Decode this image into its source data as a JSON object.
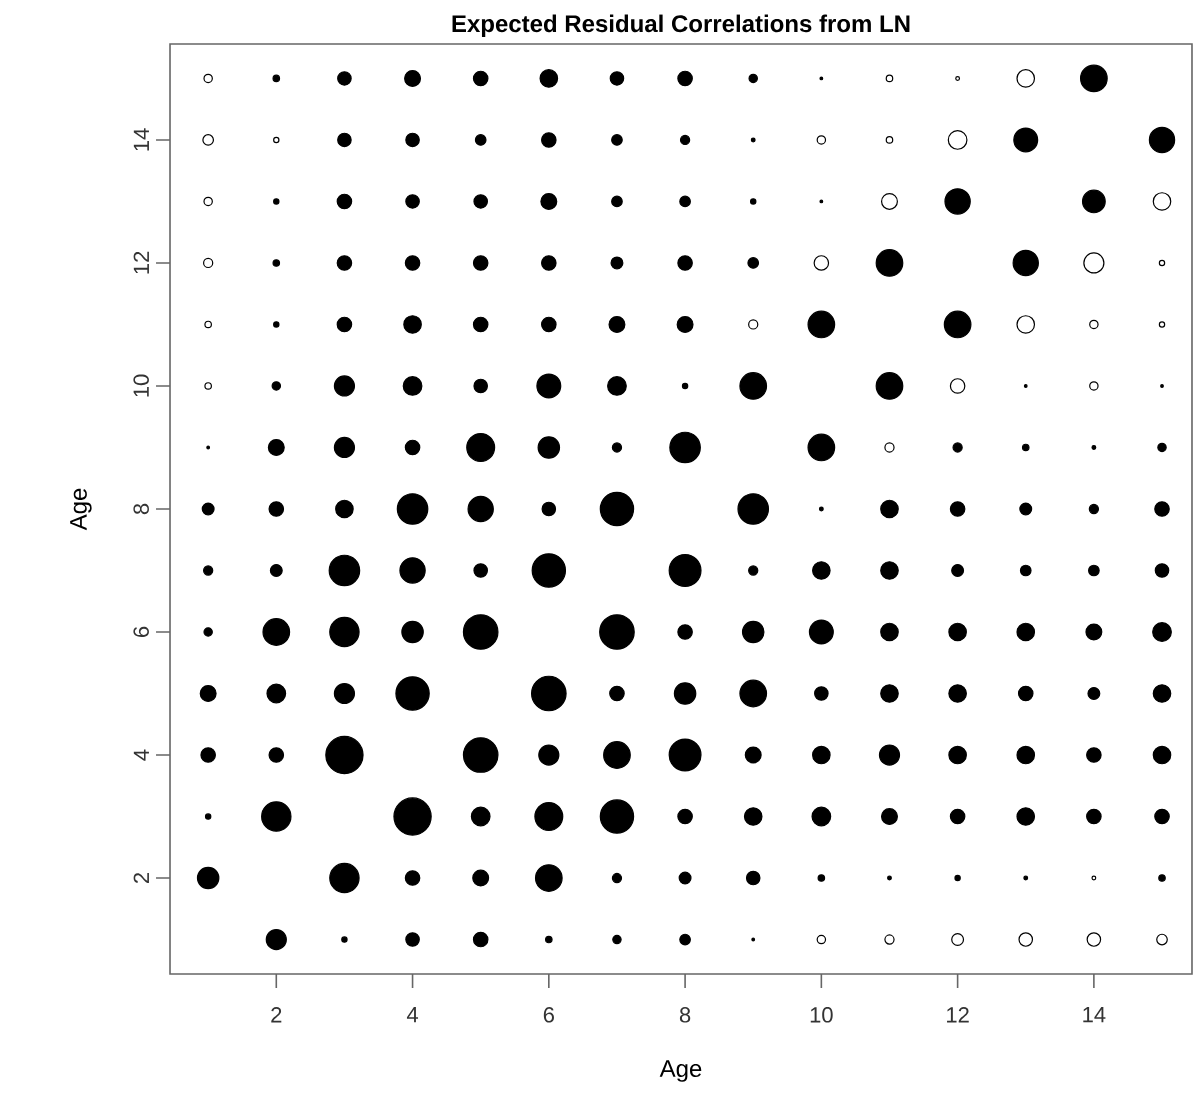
{
  "chart_data": {
    "type": "bubble",
    "title": "Expected Residual Correlations from LN",
    "xlabel": "Age",
    "ylabel": "Age",
    "xlim": [
      0.44,
      15.44
    ],
    "ylim": [
      0.44,
      15.56
    ],
    "xticks": [
      2,
      4,
      6,
      8,
      10,
      12,
      14
    ],
    "yticks": [
      2,
      4,
      6,
      8,
      10,
      12,
      14
    ],
    "series": [
      {
        "color": "#000000",
        "x": [
          2,
          3,
          4,
          5,
          6,
          7,
          8,
          9,
          10,
          14,
          3,
          4,
          5,
          6,
          7,
          8,
          9,
          13,
          15,
          2,
          3,
          4,
          5,
          6,
          7,
          8,
          9,
          10,
          12,
          14,
          2,
          3,
          4,
          5,
          6,
          7,
          8,
          9,
          11,
          13,
          2,
          3,
          4,
          5,
          6,
          7,
          8,
          10,
          12,
          2,
          3,
          4,
          5,
          6,
          7,
          8,
          9,
          11,
          13,
          15,
          1,
          2,
          3,
          4,
          5,
          6,
          7,
          8,
          10,
          12,
          13,
          14,
          15,
          1,
          2,
          3,
          4,
          5,
          6,
          7,
          9,
          10,
          11,
          12,
          13,
          14,
          15,
          1,
          2,
          3,
          4,
          5,
          6,
          8,
          9,
          10,
          11,
          12,
          13,
          14,
          15,
          1,
          2,
          3,
          4,
          5,
          7,
          8,
          9,
          10,
          11,
          12,
          13,
          14,
          15,
          1,
          2,
          3,
          4,
          6,
          7,
          8,
          9,
          10,
          11,
          12,
          13,
          14,
          15,
          1,
          2,
          3,
          5,
          6,
          7,
          8,
          9,
          10,
          11,
          12,
          13,
          14,
          15,
          1,
          2,
          4,
          5,
          6,
          7,
          8,
          9,
          10,
          11,
          12,
          13,
          14,
          15,
          1,
          3,
          4,
          5,
          6,
          7,
          8,
          9,
          10,
          11,
          12,
          13,
          15,
          2,
          3,
          4,
          5,
          6,
          7,
          8,
          9
        ],
        "values": [
          15,
          15,
          15,
          15,
          15,
          15,
          15,
          15,
          15,
          15,
          14,
          14,
          14,
          14,
          14,
          14,
          14,
          14,
          14,
          13,
          13,
          13,
          13,
          13,
          13,
          13,
          13,
          13,
          13,
          13,
          12,
          12,
          12,
          12,
          12,
          12,
          12,
          12,
          12,
          12,
          11,
          11,
          11,
          11,
          11,
          11,
          11,
          11,
          11,
          10,
          10,
          10,
          10,
          10,
          10,
          10,
          10,
          10,
          10,
          10,
          9,
          9,
          9,
          9,
          9,
          9,
          9,
          9,
          9,
          9,
          9,
          9,
          9,
          8,
          8,
          8,
          8,
          8,
          8,
          8,
          8,
          8,
          8,
          8,
          8,
          8,
          8,
          7,
          7,
          7,
          7,
          7,
          7,
          7,
          7,
          7,
          7,
          7,
          7,
          7,
          7,
          6,
          6,
          6,
          6,
          6,
          6,
          6,
          6,
          6,
          6,
          6,
          6,
          6,
          6,
          5,
          5,
          5,
          5,
          5,
          5,
          5,
          5,
          5,
          5,
          5,
          5,
          5,
          5,
          4,
          4,
          4,
          4,
          4,
          4,
          4,
          4,
          4,
          4,
          4,
          4,
          4,
          4,
          3,
          3,
          3,
          3,
          3,
          3,
          3,
          3,
          3,
          3,
          3,
          3,
          3,
          3,
          2,
          2,
          2,
          2,
          2,
          2,
          2,
          2,
          2,
          2,
          2,
          2,
          2,
          1,
          1,
          1,
          1,
          1,
          1,
          1,
          1
        ],
        "sizes": [
          0.03,
          0.13,
          0.18,
          0.15,
          0.22,
          0.13,
          0.15,
          0.05,
          0.005,
          0.51,
          0.13,
          0.13,
          0.08,
          0.15,
          0.08,
          0.06,
          0.01,
          0.41,
          0.46,
          0.02,
          0.15,
          0.13,
          0.13,
          0.18,
          0.08,
          0.08,
          0.02,
          0.005,
          0.46,
          0.37,
          0.03,
          0.15,
          0.15,
          0.15,
          0.15,
          0.1,
          0.15,
          0.08,
          0.51,
          0.46,
          0.02,
          0.15,
          0.22,
          0.15,
          0.15,
          0.18,
          0.18,
          0.51,
          0.51,
          0.05,
          0.29,
          0.25,
          0.13,
          0.41,
          0.25,
          0.02,
          0.51,
          0.51,
          0.005,
          0.005,
          0.005,
          0.18,
          0.29,
          0.15,
          0.56,
          0.33,
          0.06,
          0.67,
          0.51,
          0.06,
          0.03,
          0.01,
          0.05,
          0.1,
          0.15,
          0.22,
          0.67,
          0.46,
          0.13,
          0.8,
          0.67,
          0.01,
          0.22,
          0.15,
          0.1,
          0.06,
          0.15,
          0.06,
          0.1,
          0.67,
          0.46,
          0.13,
          0.8,
          0.73,
          0.06,
          0.22,
          0.22,
          0.1,
          0.08,
          0.08,
          0.13,
          0.05,
          0.51,
          0.62,
          0.33,
          0.86,
          0.86,
          0.15,
          0.33,
          0.41,
          0.22,
          0.22,
          0.22,
          0.18,
          0.25,
          0.18,
          0.25,
          0.29,
          0.8,
          0.86,
          0.15,
          0.33,
          0.51,
          0.13,
          0.22,
          0.22,
          0.15,
          0.1,
          0.22,
          0.15,
          0.15,
          1,
          0.86,
          0.29,
          0.51,
          0.73,
          0.18,
          0.22,
          0.29,
          0.22,
          0.22,
          0.15,
          0.22,
          0.02,
          0.62,
          1,
          0.25,
          0.56,
          0.8,
          0.15,
          0.22,
          0.25,
          0.18,
          0.15,
          0.22,
          0.15,
          0.15,
          0.33,
          0.62,
          0.15,
          0.18,
          0.51,
          0.06,
          0.1,
          0.13,
          0.03,
          0.01,
          0.02,
          0.01,
          0.03,
          0.29,
          0.02,
          0.13,
          0.15,
          0.03,
          0.05,
          0.08,
          0.005
        ]
      },
      {
        "color": "#ffffff",
        "x": [
          1,
          11,
          12,
          13,
          1,
          2,
          10,
          11,
          12,
          1,
          11,
          15,
          1,
          10,
          14,
          15,
          1,
          9,
          13,
          14,
          15,
          1,
          12,
          14,
          11,
          14,
          10,
          11,
          12,
          13,
          14,
          15
        ],
        "values": [
          15,
          15,
          15,
          15,
          14,
          14,
          14,
          14,
          14,
          13,
          13,
          13,
          12,
          12,
          12,
          12,
          11,
          11,
          11,
          11,
          11,
          10,
          10,
          10,
          9,
          2,
          1,
          1,
          1,
          1,
          1,
          1
        ],
        "sizes": [
          0.05,
          0.03,
          0.01,
          0.22,
          0.08,
          0.02,
          0.05,
          0.03,
          0.25,
          0.05,
          0.18,
          0.22,
          0.06,
          0.15,
          0.29,
          0.02,
          0.03,
          0.06,
          0.22,
          0.05,
          0.02,
          0.03,
          0.15,
          0.05,
          0.06,
          0.01,
          0.05,
          0.06,
          0.1,
          0.13,
          0.13,
          0.08
        ]
      }
    ]
  }
}
